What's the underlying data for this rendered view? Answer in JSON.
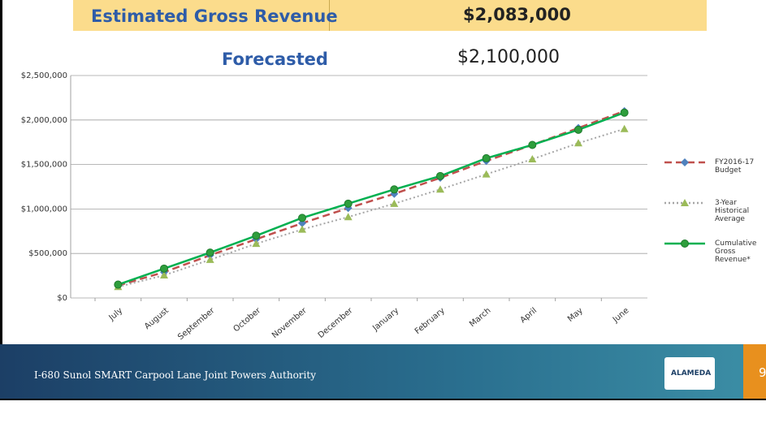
{
  "summary": {
    "estimated_label": "Estimated Gross Revenue",
    "estimated_value": "$2,083,000",
    "forecast_label": "Forecasted",
    "forecast_value": "$2,100,000"
  },
  "footer": {
    "text": "I-680 Sunol SMART Carpool Lane Joint Powers Authority",
    "page": "9",
    "logo": "ALAMEDA"
  },
  "chart_data": {
    "type": "line",
    "categories": [
      "July",
      "August",
      "September",
      "October",
      "November",
      "December",
      "January",
      "February",
      "March",
      "April",
      "May",
      "June"
    ],
    "series": [
      {
        "name": "FY2016-17 Budget",
        "color": "#c0504d",
        "marker_color": "#4f81bd",
        "marker": "diamond",
        "dash": "dashed",
        "values": [
          140000,
          290000,
          480000,
          660000,
          840000,
          1010000,
          1170000,
          1350000,
          1540000,
          1720000,
          1910000,
          2100000
        ]
      },
      {
        "name": "3-Year Historical Average",
        "color": "#a6a6a6",
        "marker_color": "#9bbb59",
        "marker": "triangle",
        "dash": "dotted",
        "values": [
          125000,
          255000,
          430000,
          610000,
          770000,
          910000,
          1060000,
          1220000,
          1390000,
          1560000,
          1740000,
          1900000
        ]
      },
      {
        "name": "Cumulative Gross Revenue*",
        "color": "#00b050",
        "marker_color": "#2e9e3c",
        "marker": "circle",
        "dash": "solid",
        "values": [
          150000,
          330000,
          510000,
          700000,
          900000,
          1060000,
          1220000,
          1370000,
          1570000,
          1720000,
          1890000,
          2083000
        ]
      }
    ],
    "ylim": [
      0,
      2500000
    ],
    "yticks": [
      {
        "value": 0,
        "label": "$0"
      },
      {
        "value": 500000,
        "label": "$500,000"
      },
      {
        "value": 1000000,
        "label": "$1,000,000"
      },
      {
        "value": 1500000,
        "label": "$1,500,000"
      },
      {
        "value": 2000000,
        "label": "$2,000,000"
      },
      {
        "value": 2500000,
        "label": "$2,500,000"
      }
    ],
    "grid": true,
    "legend": "right"
  }
}
